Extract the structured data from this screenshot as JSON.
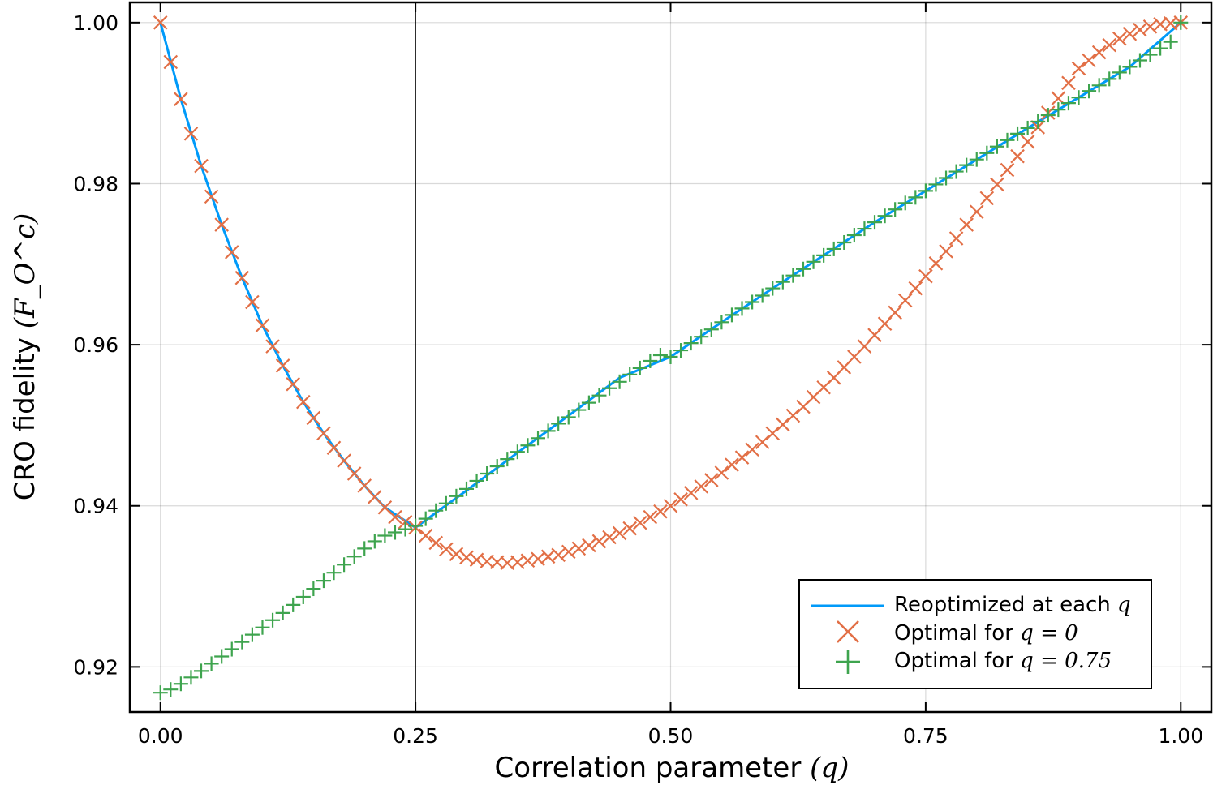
{
  "chart_data": {
    "type": "line",
    "xlabel": "Correlation parameter",
    "xlabel_math": "(q)",
    "ylabel": "CRO fidelity",
    "ylabel_math": "(F_O^c)",
    "xlim": [
      -0.03,
      1.03
    ],
    "ylim": [
      0.9144,
      1.0025
    ],
    "xticks": [
      0.0,
      0.25,
      0.5,
      0.75,
      1.0
    ],
    "xtick_labels": [
      "0.00",
      "0.25",
      "0.50",
      "0.75",
      "1.00"
    ],
    "yticks": [
      0.92,
      0.94,
      0.96,
      0.98,
      1.0
    ],
    "ytick_labels": [
      "0.92",
      "0.94",
      "0.96",
      "0.98",
      "1.00"
    ],
    "grid": true,
    "vline_x": 0.25,
    "legend_position": "bottom-right",
    "series": [
      {
        "name": "Reoptimized at each",
        "name_math": "q",
        "style": "line",
        "color": "#009AF9",
        "x": [
          0,
          0.02,
          0.04,
          0.06,
          0.08,
          0.1,
          0.12,
          0.14,
          0.16,
          0.18,
          0.2,
          0.22,
          0.25,
          0.3,
          0.35,
          0.4,
          0.45,
          0.5,
          0.55,
          0.6,
          0.65,
          0.7,
          0.75,
          0.8,
          0.85,
          0.9,
          0.95,
          1.0
        ],
        "y": [
          1.0,
          0.9905,
          0.9822,
          0.9749,
          0.9683,
          0.9624,
          0.9574,
          0.9529,
          0.949,
          0.9456,
          0.9425,
          0.9398,
          0.9373,
          0.9419,
          0.9466,
          0.9512,
          0.9559,
          0.9585,
          0.9628,
          0.967,
          0.9711,
          0.9752,
          0.9791,
          0.983,
          0.9869,
          0.9907,
          0.9945,
          1.0
        ]
      },
      {
        "name": "Optimal for",
        "name_math": "q = 0",
        "style": "x-marker",
        "color": "#E26F46",
        "x": [
          0,
          0.01,
          0.02,
          0.03,
          0.04,
          0.05,
          0.06,
          0.07,
          0.08,
          0.09,
          0.1,
          0.11,
          0.12,
          0.13,
          0.14,
          0.15,
          0.16,
          0.17,
          0.18,
          0.19,
          0.2,
          0.21,
          0.22,
          0.23,
          0.24,
          0.25,
          0.26,
          0.27,
          0.28,
          0.29,
          0.3,
          0.31,
          0.32,
          0.33,
          0.34,
          0.35,
          0.36,
          0.37,
          0.38,
          0.39,
          0.4,
          0.41,
          0.42,
          0.43,
          0.44,
          0.45,
          0.46,
          0.47,
          0.48,
          0.49,
          0.5,
          0.51,
          0.52,
          0.53,
          0.54,
          0.55,
          0.56,
          0.57,
          0.58,
          0.59,
          0.6,
          0.61,
          0.62,
          0.63,
          0.64,
          0.65,
          0.66,
          0.67,
          0.68,
          0.69,
          0.7,
          0.71,
          0.72,
          0.73,
          0.74,
          0.75,
          0.76,
          0.77,
          0.78,
          0.79,
          0.8,
          0.81,
          0.82,
          0.83,
          0.84,
          0.85,
          0.86,
          0.87,
          0.88,
          0.89,
          0.9,
          0.91,
          0.92,
          0.93,
          0.94,
          0.95,
          0.96,
          0.97,
          0.98,
          0.99,
          1.0
        ],
        "y": [
          1.0,
          0.9951,
          0.9905,
          0.9862,
          0.9822,
          0.9784,
          0.9749,
          0.9715,
          0.9683,
          0.9653,
          0.9624,
          0.9598,
          0.9574,
          0.9551,
          0.9529,
          0.9509,
          0.949,
          0.9472,
          0.9456,
          0.944,
          0.9425,
          0.9411,
          0.9398,
          0.9386,
          0.938,
          0.9373,
          0.9363,
          0.9354,
          0.9346,
          0.934,
          0.9336,
          0.9333,
          0.9331,
          0.933,
          0.9329,
          0.933,
          0.9332,
          0.9334,
          0.9337,
          0.9339,
          0.9343,
          0.9347,
          0.9351,
          0.9356,
          0.9361,
          0.9366,
          0.9372,
          0.9379,
          0.9386,
          0.9393,
          0.94,
          0.9408,
          0.9416,
          0.9424,
          0.9432,
          0.9441,
          0.9451,
          0.946,
          0.947,
          0.9479,
          0.949,
          0.9501,
          0.9512,
          0.9523,
          0.9535,
          0.9547,
          0.9559,
          0.9572,
          0.9585,
          0.9598,
          0.9612,
          0.9626,
          0.964,
          0.9655,
          0.967,
          0.9685,
          0.9701,
          0.9716,
          0.9732,
          0.9749,
          0.9765,
          0.9782,
          0.9799,
          0.9817,
          0.9834,
          0.9852,
          0.987,
          0.9888,
          0.9906,
          0.9925,
          0.9943,
          0.9953,
          0.9963,
          0.9972,
          0.998,
          0.9986,
          0.9991,
          0.9995,
          0.9998,
          0.9999,
          1.0
        ]
      },
      {
        "name": "Optimal for",
        "name_math": "q = 0.75",
        "style": "plus-marker",
        "color": "#3EA44E",
        "x": [
          0,
          0.01,
          0.02,
          0.03,
          0.04,
          0.05,
          0.06,
          0.07,
          0.08,
          0.09,
          0.1,
          0.11,
          0.12,
          0.13,
          0.14,
          0.15,
          0.16,
          0.17,
          0.18,
          0.19,
          0.2,
          0.21,
          0.22,
          0.23,
          0.24,
          0.25,
          0.26,
          0.27,
          0.28,
          0.29,
          0.3,
          0.31,
          0.32,
          0.33,
          0.34,
          0.35,
          0.36,
          0.37,
          0.38,
          0.39,
          0.4,
          0.41,
          0.42,
          0.43,
          0.44,
          0.45,
          0.46,
          0.47,
          0.48,
          0.49,
          0.5,
          0.51,
          0.52,
          0.53,
          0.54,
          0.55,
          0.56,
          0.57,
          0.58,
          0.59,
          0.6,
          0.61,
          0.62,
          0.63,
          0.64,
          0.65,
          0.66,
          0.67,
          0.68,
          0.69,
          0.7,
          0.71,
          0.72,
          0.73,
          0.74,
          0.75,
          0.76,
          0.77,
          0.78,
          0.79,
          0.8,
          0.81,
          0.82,
          0.83,
          0.84,
          0.85,
          0.86,
          0.87,
          0.88,
          0.89,
          0.9,
          0.91,
          0.92,
          0.93,
          0.94,
          0.95,
          0.96,
          0.97,
          0.98,
          0.99,
          1.0
        ],
        "y": [
          0.9168,
          0.9172,
          0.9179,
          0.9187,
          0.9195,
          0.9204,
          0.9213,
          0.9222,
          0.9231,
          0.924,
          0.9249,
          0.9258,
          0.9267,
          0.9277,
          0.9287,
          0.9297,
          0.9307,
          0.9317,
          0.9327,
          0.9337,
          0.9347,
          0.9356,
          0.9363,
          0.9367,
          0.9371,
          0.9375,
          0.9384,
          0.9394,
          0.9403,
          0.9412,
          0.9421,
          0.9431,
          0.944,
          0.9449,
          0.9458,
          0.9467,
          0.9475,
          0.9484,
          0.9493,
          0.9502,
          0.951,
          0.9519,
          0.9528,
          0.9537,
          0.9546,
          0.9554,
          0.9563,
          0.9571,
          0.958,
          0.9587,
          0.9585,
          0.9593,
          0.9602,
          0.961,
          0.9619,
          0.9628,
          0.9637,
          0.9645,
          0.9653,
          0.9661,
          0.967,
          0.9678,
          0.9686,
          0.9694,
          0.9703,
          0.9711,
          0.9719,
          0.9727,
          0.9736,
          0.9744,
          0.9752,
          0.976,
          0.9768,
          0.9776,
          0.9783,
          0.9791,
          0.9799,
          0.9807,
          0.9815,
          0.9823,
          0.983,
          0.9838,
          0.9846,
          0.9854,
          0.9862,
          0.9869,
          0.9877,
          0.9885,
          0.9892,
          0.99,
          0.9907,
          0.9915,
          0.9922,
          0.993,
          0.9938,
          0.9945,
          0.9953,
          0.996,
          0.9968,
          0.9976,
          1.0
        ]
      }
    ]
  }
}
